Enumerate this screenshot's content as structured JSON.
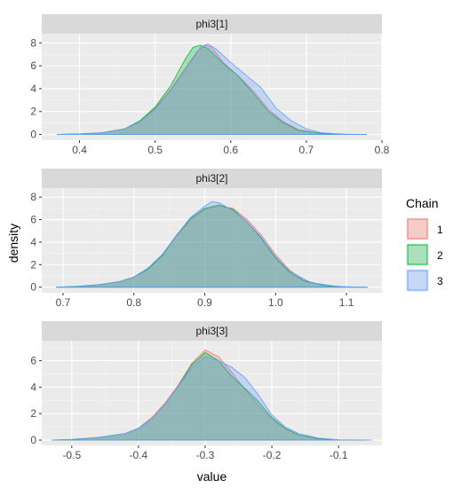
{
  "chart_data": {
    "type": "area",
    "xlabel": "value",
    "ylabel": "density",
    "legend": {
      "title": "Chain",
      "placement": "right",
      "entries": [
        {
          "label": "1",
          "color": "#F8766D"
        },
        {
          "label": "2",
          "color": "#00BA38"
        },
        {
          "label": "3",
          "color": "#619CFF"
        }
      ]
    },
    "grid": true,
    "panels": [
      {
        "strip": "phi3[1]",
        "xlim": [
          0.35,
          0.8
        ],
        "ylim": [
          -0.5,
          8.8
        ],
        "xticks": [
          0.4,
          0.5,
          0.6,
          0.7,
          0.8
        ],
        "xtick_labels": [
          "0.4",
          "0.5",
          "0.6",
          "0.7",
          "0.8"
        ],
        "yticks": [
          0,
          2,
          4,
          6,
          8
        ],
        "ytick_labels": [
          "0",
          "2",
          "4",
          "6",
          "8"
        ],
        "series": [
          {
            "name": "1",
            "x": [
              0.37,
              0.4,
              0.43,
              0.46,
              0.48,
              0.5,
              0.52,
              0.54,
              0.555,
              0.565,
              0.575,
              0.59,
              0.61,
              0.63,
              0.65,
              0.67,
              0.69,
              0.72,
              0.75,
              0.78
            ],
            "y": [
              0.0,
              0.05,
              0.15,
              0.5,
              1.2,
              2.3,
              3.9,
              5.8,
              7.2,
              7.8,
              7.6,
              6.3,
              5.1,
              3.8,
              2.2,
              1.1,
              0.4,
              0.1,
              0.02,
              0.0
            ]
          },
          {
            "name": "2",
            "x": [
              0.37,
              0.4,
              0.43,
              0.46,
              0.48,
              0.5,
              0.52,
              0.54,
              0.55,
              0.56,
              0.57,
              0.59,
              0.61,
              0.63,
              0.65,
              0.67,
              0.69,
              0.72,
              0.75,
              0.78
            ],
            "y": [
              0.0,
              0.05,
              0.15,
              0.5,
              1.2,
              2.4,
              4.2,
              6.6,
              7.6,
              7.8,
              7.5,
              6.2,
              5.1,
              3.6,
              2.0,
              1.0,
              0.35,
              0.08,
              0.02,
              0.0
            ]
          },
          {
            "name": "3",
            "x": [
              0.37,
              0.4,
              0.43,
              0.46,
              0.48,
              0.5,
              0.52,
              0.54,
              0.56,
              0.57,
              0.58,
              0.6,
              0.62,
              0.64,
              0.66,
              0.68,
              0.7,
              0.72,
              0.75,
              0.78
            ],
            "y": [
              0.0,
              0.05,
              0.15,
              0.5,
              1.1,
              2.2,
              3.8,
              5.6,
              7.6,
              7.9,
              7.5,
              6.3,
              5.2,
              4.1,
              2.3,
              1.2,
              0.5,
              0.15,
              0.03,
              0.0
            ]
          }
        ]
      },
      {
        "strip": "phi3[2]",
        "xlim": [
          0.67,
          1.15
        ],
        "ylim": [
          -0.5,
          8.8
        ],
        "xticks": [
          0.7,
          0.8,
          0.9,
          1.0,
          1.1
        ],
        "xtick_labels": [
          "0.7",
          "0.8",
          "0.9",
          "1.0",
          "1.1"
        ],
        "yticks": [
          0,
          2,
          4,
          6,
          8
        ],
        "ytick_labels": [
          "0",
          "2",
          "4",
          "6",
          "8"
        ],
        "series": [
          {
            "name": "1",
            "x": [
              0.69,
              0.72,
              0.75,
              0.78,
              0.8,
              0.82,
              0.84,
              0.86,
              0.88,
              0.9,
              0.92,
              0.94,
              0.96,
              0.98,
              1.0,
              1.02,
              1.04,
              1.07,
              1.1,
              1.13
            ],
            "y": [
              0.0,
              0.05,
              0.2,
              0.5,
              0.9,
              1.7,
              2.9,
              4.5,
              6.0,
              6.9,
              7.2,
              7.0,
              6.0,
              4.6,
              2.9,
              1.5,
              0.6,
              0.15,
              0.03,
              0.0
            ]
          },
          {
            "name": "2",
            "x": [
              0.69,
              0.72,
              0.75,
              0.78,
              0.8,
              0.82,
              0.84,
              0.86,
              0.88,
              0.9,
              0.92,
              0.94,
              0.96,
              0.98,
              1.0,
              1.02,
              1.04,
              1.07,
              1.1,
              1.13
            ],
            "y": [
              0.0,
              0.08,
              0.22,
              0.5,
              0.9,
              1.6,
              2.8,
              4.6,
              6.1,
              7.0,
              7.3,
              6.9,
              5.8,
              4.3,
              2.6,
              1.3,
              0.55,
              0.12,
              0.02,
              0.0
            ]
          },
          {
            "name": "3",
            "x": [
              0.69,
              0.72,
              0.75,
              0.78,
              0.8,
              0.82,
              0.84,
              0.86,
              0.88,
              0.9,
              0.91,
              0.92,
              0.94,
              0.96,
              0.98,
              1.0,
              1.02,
              1.05,
              1.09,
              1.13
            ],
            "y": [
              0.0,
              0.05,
              0.2,
              0.5,
              0.9,
              1.7,
              2.9,
              4.6,
              6.2,
              7.2,
              7.6,
              7.5,
              6.8,
              5.8,
              4.4,
              2.7,
              1.4,
              0.4,
              0.05,
              0.0
            ]
          }
        ]
      },
      {
        "strip": "phi3[3]",
        "xlim": [
          -0.545,
          -0.035
        ],
        "ylim": [
          -0.4,
          7.5
        ],
        "xticks": [
          -0.5,
          -0.4,
          -0.3,
          -0.2,
          -0.1
        ],
        "xtick_labels": [
          "-0.5",
          "-0.4",
          "-0.3",
          "-0.2",
          "-0.1"
        ],
        "yticks": [
          0,
          2,
          4,
          6
        ],
        "ytick_labels": [
          "0",
          "2",
          "4",
          "6"
        ],
        "series": [
          {
            "name": "1",
            "x": [
              -0.53,
              -0.5,
              -0.46,
              -0.42,
              -0.4,
              -0.38,
              -0.36,
              -0.34,
              -0.32,
              -0.3,
              -0.28,
              -0.26,
              -0.24,
              -0.22,
              -0.2,
              -0.18,
              -0.16,
              -0.13,
              -0.1,
              -0.06
            ],
            "y": [
              0.0,
              0.05,
              0.2,
              0.5,
              0.9,
              1.7,
              2.8,
              4.2,
              5.8,
              6.8,
              6.3,
              5.1,
              3.8,
              2.6,
              1.6,
              0.85,
              0.4,
              0.1,
              0.02,
              0.0
            ]
          },
          {
            "name": "2",
            "x": [
              -0.53,
              -0.5,
              -0.46,
              -0.42,
              -0.4,
              -0.38,
              -0.36,
              -0.34,
              -0.32,
              -0.3,
              -0.28,
              -0.26,
              -0.24,
              -0.22,
              -0.2,
              -0.18,
              -0.16,
              -0.13,
              -0.1,
              -0.06
            ],
            "y": [
              0.0,
              0.05,
              0.2,
              0.5,
              0.9,
              1.6,
              2.7,
              4.1,
              5.7,
              6.6,
              6.0,
              4.8,
              3.9,
              2.9,
              1.7,
              0.9,
              0.4,
              0.1,
              0.02,
              0.0
            ]
          },
          {
            "name": "3",
            "x": [
              -0.53,
              -0.5,
              -0.46,
              -0.42,
              -0.4,
              -0.38,
              -0.36,
              -0.34,
              -0.32,
              -0.3,
              -0.28,
              -0.26,
              -0.24,
              -0.22,
              -0.2,
              -0.18,
              -0.16,
              -0.13,
              -0.1,
              -0.05
            ],
            "y": [
              0.0,
              0.05,
              0.2,
              0.5,
              0.9,
              1.6,
              2.7,
              4.1,
              5.5,
              6.3,
              6.0,
              5.5,
              4.7,
              3.4,
              1.9,
              1.0,
              0.5,
              0.15,
              0.03,
              0.0
            ]
          }
        ]
      }
    ]
  }
}
